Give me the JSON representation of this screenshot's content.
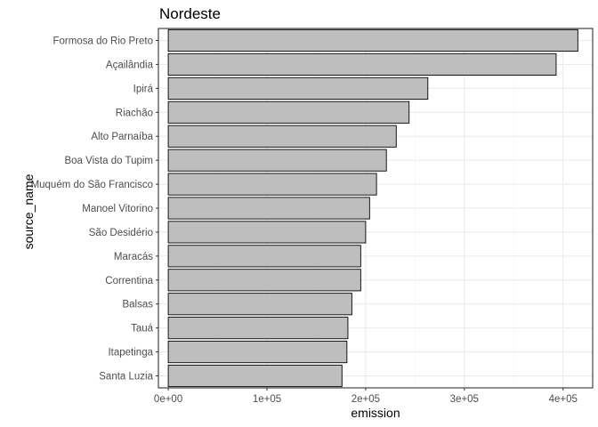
{
  "chart_data": {
    "type": "bar",
    "orientation": "horizontal",
    "title": "Nordeste",
    "xlabel": "emission",
    "ylabel": "source_name",
    "categories": [
      "Formosa do Rio Preto",
      "Açailândia",
      "Ipirá",
      "Riachão",
      "Alto Parnaíba",
      "Boa Vista do Tupim",
      "Muquém do São Francisco",
      "Manoel Vitorino",
      "São Desidério",
      "Maracás",
      "Correntina",
      "Balsas",
      "Tauá",
      "Itapetinga",
      "Santa Luzia"
    ],
    "values": [
      415000,
      393000,
      263000,
      244000,
      231000,
      221000,
      211000,
      204000,
      200000,
      195000,
      195000,
      186000,
      182000,
      181000,
      176000
    ],
    "xlim": [
      -10000,
      430000
    ],
    "xticks": [
      0,
      100000,
      200000,
      300000,
      400000
    ],
    "xtick_labels": [
      "0e+00",
      "1e+05",
      "2e+05",
      "3e+05",
      "4e+05"
    ],
    "grid": true,
    "colors": {
      "bar_fill": "#bebebe",
      "bar_stroke": "#000000",
      "panel_border": "#333333",
      "grid_major": "#ebebeb",
      "grid_minor": "#f5f5f5",
      "tick_text": "#4d4d4d"
    }
  }
}
